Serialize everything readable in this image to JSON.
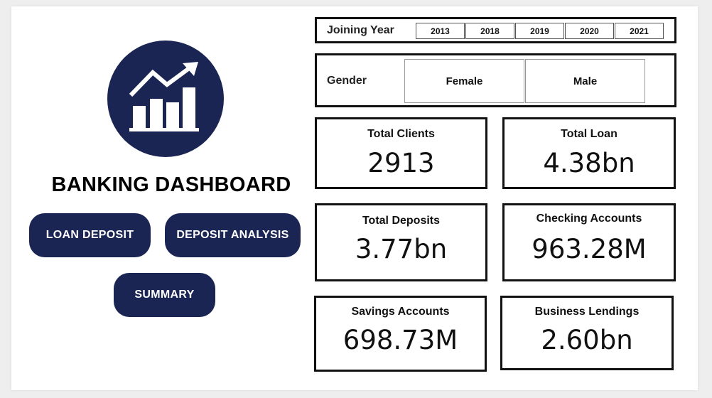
{
  "dashboard": {
    "title": "BANKING DASHBOARD",
    "logo_icon": "bar-chart-trend-up-icon"
  },
  "nav": {
    "loan_deposit": "LOAN DEPOSIT",
    "deposit_analysis": "DEPOSIT ANALYSIS",
    "summary": "SUMMARY"
  },
  "filters": {
    "joining_year": {
      "label": "Joining Year",
      "options": [
        "2013",
        "2018",
        "2019",
        "2020",
        "2021"
      ]
    },
    "gender": {
      "label": "Gender",
      "options": [
        "Female",
        "Male"
      ]
    }
  },
  "kpis": [
    {
      "label": "Total Clients",
      "value": "2913"
    },
    {
      "label": "Total Loan",
      "value": "4.38bn"
    },
    {
      "label": "Total Deposits",
      "value": "3.77bn"
    },
    {
      "label": "Checking Accounts",
      "value": "963.28M"
    },
    {
      "label": "Savings Accounts",
      "value": "698.73M"
    },
    {
      "label": "Business Lendings",
      "value": "2.60bn"
    }
  ],
  "colors": {
    "brand_navy": "#1b2554",
    "card_border": "#111111",
    "background": "#ffffff"
  }
}
